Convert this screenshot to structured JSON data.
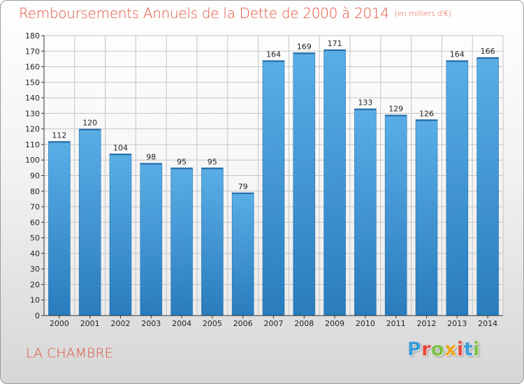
{
  "title": "Remboursements Annuels de la Dette de 2000 à 2014",
  "subtitle": "(en milliers d'€)",
  "commune": "LA CHAMBRE",
  "logo": {
    "letters": [
      "P",
      "r",
      "o",
      "x",
      "i",
      "t",
      "i"
    ],
    "colors": [
      "#3a9bd9",
      "#e8463a",
      "#7bc143",
      "#f2a51d",
      "#e8463a",
      "#3a9bd9",
      "#7bc143"
    ]
  },
  "colors": {
    "title": "#e0533d",
    "bar_light": "#5aaee6",
    "bar_dark": "#2a7cbd"
  },
  "chart_data": {
    "type": "bar",
    "title": "Remboursements Annuels de la Dette de 2000 à 2014",
    "categories": [
      "2000",
      "2001",
      "2002",
      "2003",
      "2004",
      "2005",
      "2006",
      "2007",
      "2008",
      "2009",
      "2010",
      "2011",
      "2012",
      "2013",
      "2014"
    ],
    "values": [
      112,
      120,
      104,
      98,
      95,
      95,
      79,
      164,
      169,
      171,
      133,
      129,
      126,
      164,
      166
    ],
    "xlabel": "",
    "ylabel": "",
    "ylim": [
      0,
      180
    ],
    "yticks": [
      0,
      10,
      20,
      30,
      40,
      50,
      60,
      70,
      80,
      90,
      100,
      110,
      120,
      130,
      140,
      150,
      160,
      170,
      180
    ],
    "grid": true
  }
}
